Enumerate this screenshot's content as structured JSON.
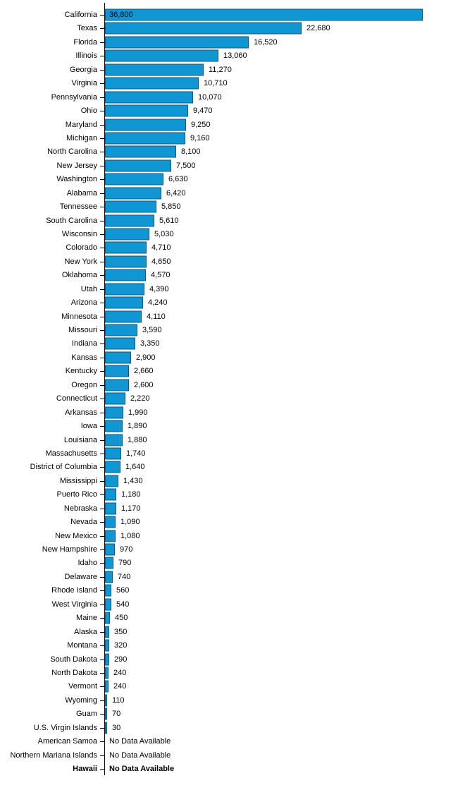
{
  "chart_data": {
    "type": "bar",
    "orientation": "horizontal",
    "title": "",
    "xlabel": "",
    "ylabel": "",
    "xlim": [
      0,
      38000
    ],
    "grid": false,
    "legend": null,
    "bar_color": "#1096d3",
    "bar_border_color": "#10597e",
    "axis_color": "#000000",
    "text_color": "#000000",
    "no_data_text": "No Data Available",
    "rows": [
      {
        "label": "California",
        "value": 36800,
        "display": "36,800",
        "value_inside": true
      },
      {
        "label": "Texas",
        "value": 22680,
        "display": "22,680"
      },
      {
        "label": "Florida",
        "value": 16520,
        "display": "16,520"
      },
      {
        "label": "Illinois",
        "value": 13060,
        "display": "13,060"
      },
      {
        "label": "Georgia",
        "value": 11270,
        "display": "11,270"
      },
      {
        "label": "Virginia",
        "value": 10710,
        "display": "10,710"
      },
      {
        "label": "Pennsylvania",
        "value": 10070,
        "display": "10,070"
      },
      {
        "label": "Ohio",
        "value": 9470,
        "display": "9,470"
      },
      {
        "label": "Maryland",
        "value": 9250,
        "display": "9,250"
      },
      {
        "label": "Michigan",
        "value": 9160,
        "display": "9,160"
      },
      {
        "label": "North Carolina",
        "value": 8100,
        "display": "8,100"
      },
      {
        "label": "New Jersey",
        "value": 7500,
        "display": "7,500"
      },
      {
        "label": "Washington",
        "value": 6630,
        "display": "6,630"
      },
      {
        "label": "Alabama",
        "value": 6420,
        "display": "6,420"
      },
      {
        "label": "Tennessee",
        "value": 5850,
        "display": "5,850"
      },
      {
        "label": "South Carolina",
        "value": 5610,
        "display": "5,610"
      },
      {
        "label": "Wisconsin",
        "value": 5030,
        "display": "5,030"
      },
      {
        "label": "Colorado",
        "value": 4710,
        "display": "4,710"
      },
      {
        "label": "New York",
        "value": 4650,
        "display": "4,650"
      },
      {
        "label": "Oklahoma",
        "value": 4570,
        "display": "4,570"
      },
      {
        "label": "Utah",
        "value": 4390,
        "display": "4,390"
      },
      {
        "label": "Arizona",
        "value": 4240,
        "display": "4,240"
      },
      {
        "label": "Minnesota",
        "value": 4110,
        "display": "4,110"
      },
      {
        "label": "Missouri",
        "value": 3590,
        "display": "3,590"
      },
      {
        "label": "Indiana",
        "value": 3350,
        "display": "3,350"
      },
      {
        "label": "Kansas",
        "value": 2900,
        "display": "2,900"
      },
      {
        "label": "Kentucky",
        "value": 2660,
        "display": "2,660"
      },
      {
        "label": "Oregon",
        "value": 2600,
        "display": "2,600"
      },
      {
        "label": "Connecticut",
        "value": 2220,
        "display": "2,220"
      },
      {
        "label": "Arkansas",
        "value": 1990,
        "display": "1,990"
      },
      {
        "label": "Iowa",
        "value": 1890,
        "display": "1,890"
      },
      {
        "label": "Louisiana",
        "value": 1880,
        "display": "1,880"
      },
      {
        "label": "Massachusetts",
        "value": 1740,
        "display": "1,740"
      },
      {
        "label": "District of Columbia",
        "value": 1640,
        "display": "1,640"
      },
      {
        "label": "Mississippi",
        "value": 1430,
        "display": "1,430"
      },
      {
        "label": "Puerto Rico",
        "value": 1180,
        "display": "1,180"
      },
      {
        "label": "Nebraska",
        "value": 1170,
        "display": "1,170"
      },
      {
        "label": "Nevada",
        "value": 1090,
        "display": "1,090"
      },
      {
        "label": "New Mexico",
        "value": 1080,
        "display": "1,080"
      },
      {
        "label": "New Hampshire",
        "value": 970,
        "display": "970"
      },
      {
        "label": "Idaho",
        "value": 790,
        "display": "790"
      },
      {
        "label": "Delaware",
        "value": 740,
        "display": "740"
      },
      {
        "label": "Rhode Island",
        "value": 560,
        "display": "560"
      },
      {
        "label": "West Virginia",
        "value": 540,
        "display": "540"
      },
      {
        "label": "Maine",
        "value": 450,
        "display": "450"
      },
      {
        "label": "Alaska",
        "value": 350,
        "display": "350"
      },
      {
        "label": "Montana",
        "value": 320,
        "display": "320"
      },
      {
        "label": "South Dakota",
        "value": 290,
        "display": "290"
      },
      {
        "label": "North Dakota",
        "value": 240,
        "display": "240"
      },
      {
        "label": "Vermont",
        "value": 240,
        "display": "240"
      },
      {
        "label": "Wyoming",
        "value": 110,
        "display": "110"
      },
      {
        "label": "Guam",
        "value": 70,
        "display": "70"
      },
      {
        "label": "U.S. Virgin Islands",
        "value": 30,
        "display": "30"
      },
      {
        "label": "American Samoa",
        "value": null,
        "display": "No Data Available"
      },
      {
        "label": "Northern Mariana Islands",
        "value": null,
        "display": "No Data Available"
      },
      {
        "label": "Hawaii",
        "value": null,
        "display": "No Data Available",
        "bold": true
      }
    ]
  }
}
